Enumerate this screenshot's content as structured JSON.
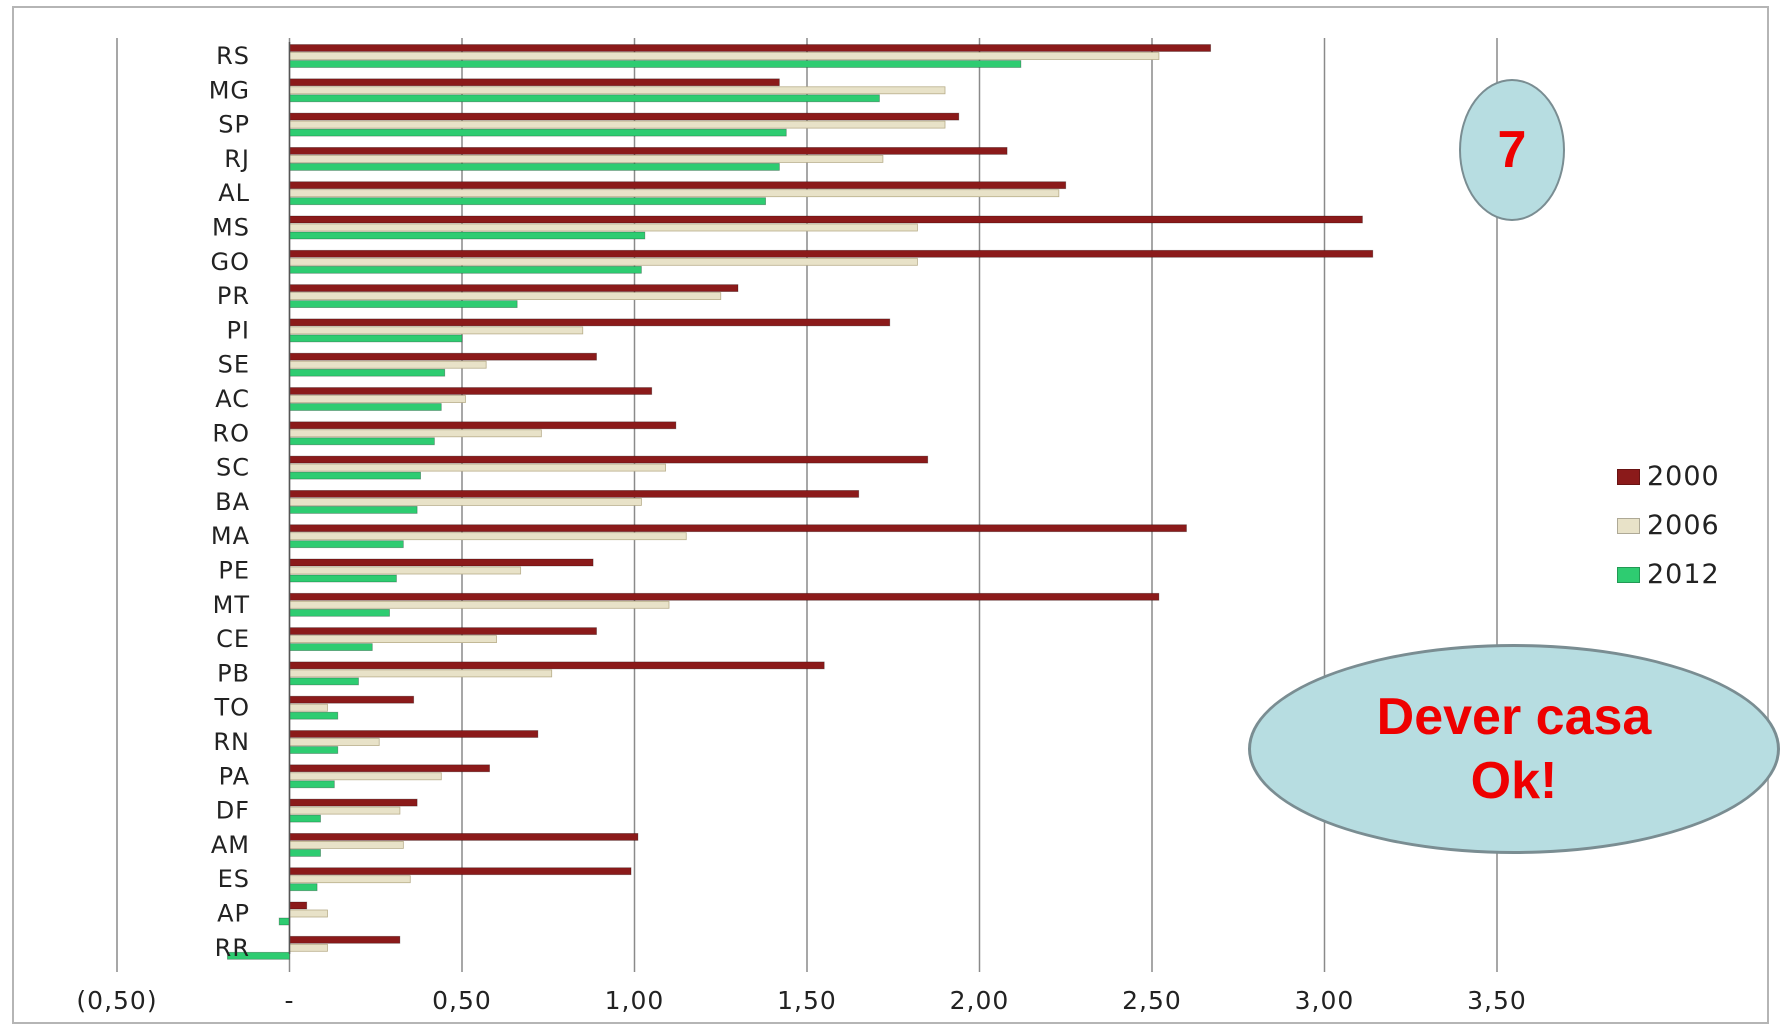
{
  "colors": {
    "s2000": "#8b1a1a",
    "s2006": "#e8e2c8",
    "s2012": "#2ecc71",
    "grid": "#8a8a8a",
    "badge_fill": "#b7dde1",
    "badge_text": "#ee0000"
  },
  "badge_text": "7",
  "bubble": {
    "line1": "Dever casa",
    "line2": "Ok!"
  },
  "chart_data": {
    "type": "bar",
    "orientation": "horizontal",
    "categories": [
      "RS",
      "MG",
      "SP",
      "RJ",
      "AL",
      "MS",
      "GO",
      "PR",
      "PI",
      "SE",
      "AC",
      "RO",
      "SC",
      "BA",
      "MA",
      "PE",
      "MT",
      "CE",
      "PB",
      "TO",
      "RN",
      "PA",
      "DF",
      "AM",
      "ES",
      "AP",
      "RR"
    ],
    "series": [
      {
        "name": "2000",
        "values": [
          2.67,
          1.42,
          1.94,
          2.08,
          2.25,
          3.11,
          3.14,
          1.3,
          1.74,
          0.89,
          1.05,
          1.12,
          1.85,
          1.65,
          2.6,
          0.88,
          2.52,
          0.89,
          1.55,
          0.36,
          0.72,
          0.58,
          0.37,
          1.01,
          0.99,
          0.05,
          0.32
        ]
      },
      {
        "name": "2006",
        "values": [
          2.52,
          1.9,
          1.9,
          1.72,
          2.23,
          1.82,
          1.82,
          1.25,
          0.85,
          0.57,
          0.51,
          0.73,
          1.09,
          1.02,
          1.15,
          0.67,
          1.1,
          0.6,
          0.76,
          0.11,
          0.26,
          0.44,
          0.32,
          0.33,
          0.35,
          0.11,
          0.11
        ]
      },
      {
        "name": "2012",
        "values": [
          2.12,
          1.71,
          1.44,
          1.42,
          1.38,
          1.03,
          1.02,
          0.66,
          0.5,
          0.45,
          0.44,
          0.42,
          0.38,
          0.37,
          0.33,
          0.31,
          0.29,
          0.24,
          0.2,
          0.14,
          0.14,
          0.13,
          0.09,
          0.09,
          0.08,
          -0.03,
          -0.18
        ]
      }
    ],
    "xticks": [
      "(0,50)",
      "-",
      "0,50",
      "1,00",
      "1,50",
      "2,00",
      "2,50",
      "3,00",
      "3,50"
    ],
    "xlim": [
      -0.5,
      3.5
    ],
    "grid": true,
    "legend_position": "right"
  }
}
